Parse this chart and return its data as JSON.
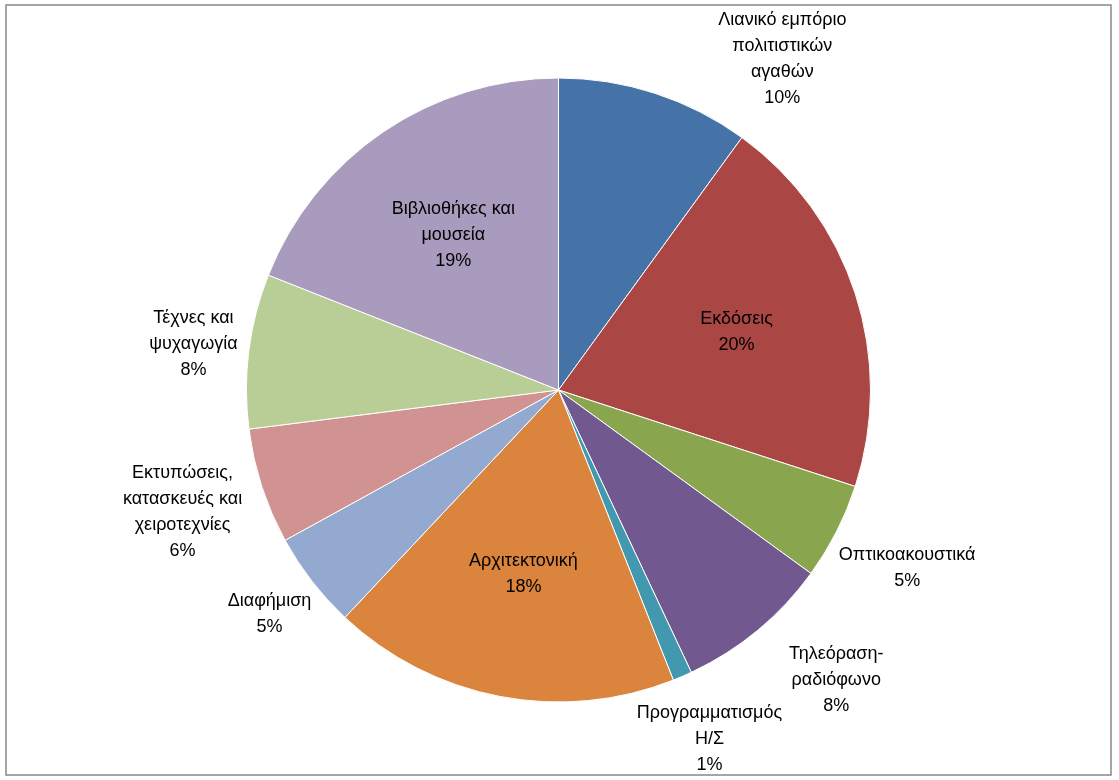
{
  "chart_data": {
    "type": "pie",
    "categories": [
      "Λιανικό εμπόριο πολιτιστικών αγαθών",
      "Εκδόσεις",
      "Οπτικοακουστικά",
      "Τηλεόραση-ραδιόφωνο",
      "Προγραμματισμός Η/Σ",
      "Αρχιτεκτονική",
      "Διαφήμιση",
      "Εκτυπώσεις, κατασκευές και χειροτεχνίες",
      "Τέχνες και ψυχαγωγία",
      "Βιβλιοθήκες και μουσεία"
    ],
    "values": [
      10,
      20,
      5,
      8,
      1,
      18,
      5,
      6,
      8,
      19
    ],
    "value_labels": [
      "10%",
      "20%",
      "5%",
      "8%",
      "1%",
      "18%",
      "5%",
      "6%",
      "8%",
      "19%"
    ],
    "colors": [
      "#4572a7",
      "#aa4643",
      "#89a54e",
      "#71588f",
      "#4198af",
      "#db843d",
      "#93a9cf",
      "#d19392",
      "#b9cd96",
      "#a99bbd"
    ]
  }
}
